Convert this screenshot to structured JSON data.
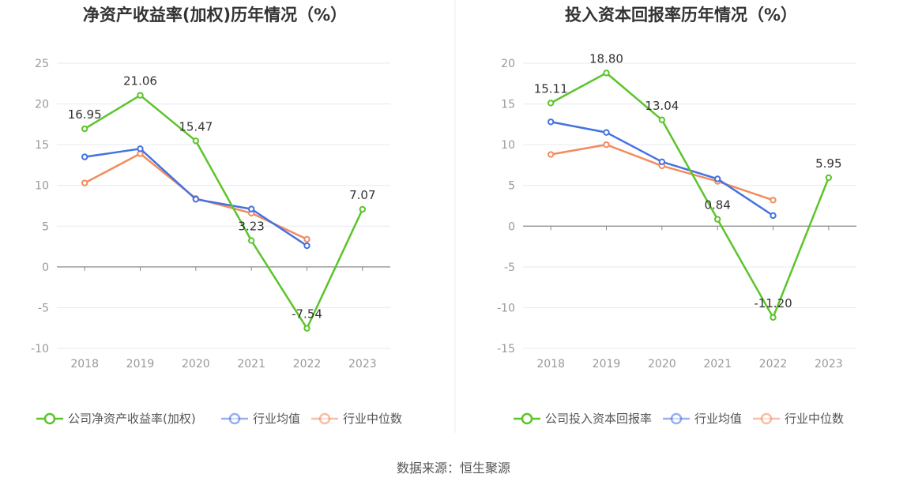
{
  "source": "数据来源：恒生聚源",
  "colors": {
    "company": "#5cc42b",
    "average": "#4472e0",
    "median": "#f28c5e",
    "axis": "#999999",
    "grid": "#e6e9f2"
  },
  "chart_data": [
    {
      "type": "line",
      "title": "净资产收益率(加权)历年情况（%）",
      "categories": [
        "2018",
        "2019",
        "2020",
        "2021",
        "2022",
        "2023"
      ],
      "ylim": [
        -10,
        25
      ],
      "yticks": [
        25,
        20,
        15,
        10,
        5,
        0,
        -5,
        -10
      ],
      "grid": true,
      "legend": "bottom",
      "series": [
        {
          "name": "公司净资产收益率(加权)",
          "color": "#5cc42b",
          "values": [
            16.95,
            21.06,
            15.47,
            3.23,
            -7.54,
            7.07
          ],
          "labels": [
            "16.95",
            "21.06",
            "15.47",
            "3.23",
            "-7.54",
            "7.07"
          ]
        },
        {
          "name": "行业均值",
          "color": "#4472e0",
          "values": [
            13.5,
            14.5,
            8.3,
            7.1,
            2.6,
            null
          ]
        },
        {
          "name": "行业中位数",
          "color": "#f28c5e",
          "values": [
            10.3,
            13.9,
            8.4,
            6.6,
            3.4,
            null
          ]
        }
      ]
    },
    {
      "type": "line",
      "title": "投入资本回报率历年情况（%）",
      "categories": [
        "2018",
        "2019",
        "2020",
        "2021",
        "2022",
        "2023"
      ],
      "ylim": [
        -15,
        20
      ],
      "yticks": [
        20,
        15,
        10,
        5,
        0,
        -5,
        -10,
        -15
      ],
      "grid": true,
      "legend": "bottom",
      "series": [
        {
          "name": "公司投入资本回报率",
          "color": "#5cc42b",
          "values": [
            15.11,
            18.8,
            13.04,
            0.84,
            -11.2,
            5.95
          ],
          "labels": [
            "15.11",
            "18.80",
            "13.04",
            "0.84",
            "-11.20",
            "5.95"
          ]
        },
        {
          "name": "行业均值",
          "color": "#4472e0",
          "values": [
            12.8,
            11.5,
            7.9,
            5.8,
            1.3,
            null
          ]
        },
        {
          "name": "行业中位数",
          "color": "#f28c5e",
          "values": [
            8.8,
            10.0,
            7.4,
            5.5,
            3.2,
            null
          ]
        }
      ]
    }
  ]
}
